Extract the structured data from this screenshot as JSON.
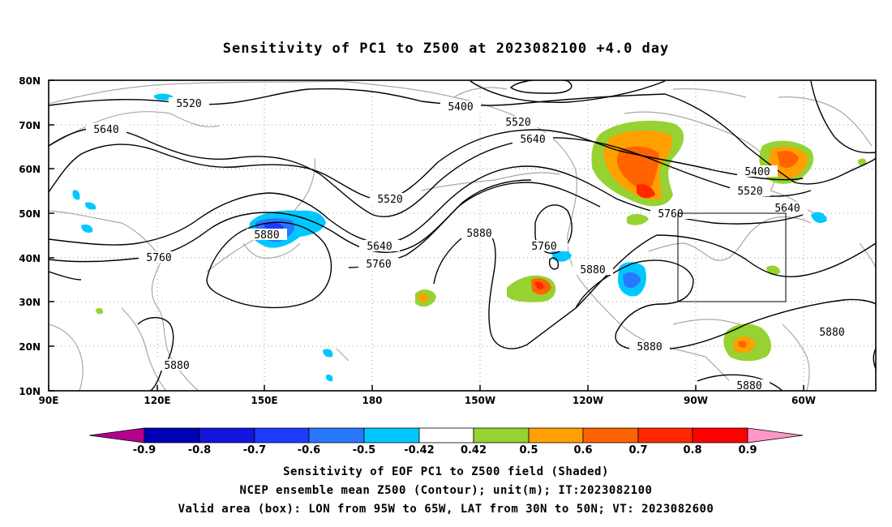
{
  "title": "Sensitivity of PC1 to Z500 at 2023082100 +4.0 day",
  "map": {
    "lon_labels": [
      "90E",
      "120E",
      "150E",
      "180",
      "150W",
      "120W",
      "90W",
      "60W"
    ],
    "lat_labels": [
      "80N",
      "70N",
      "60N",
      "50N",
      "40N",
      "30N",
      "20N",
      "10N"
    ],
    "contour_labels": [
      "5520",
      "5400",
      "5520",
      "5640",
      "5640",
      "5520",
      "5400",
      "5880",
      "5760",
      "5640",
      "5760",
      "5880",
      "5760",
      "5880",
      "5760",
      "5640",
      "5880",
      "5880",
      "5880",
      "5880"
    ]
  },
  "colorbar": {
    "labels": [
      "-0.9",
      "-0.8",
      "-0.7",
      "-0.6",
      "-0.5",
      "-0.42",
      "0.42",
      "0.5",
      "0.6",
      "0.7",
      "0.8",
      "0.9"
    ],
    "colors": [
      "#b4008c",
      "#0000b4",
      "#1414dc",
      "#1e3cff",
      "#2878ff",
      "#00c8ff",
      "#ffffff",
      "#96d232",
      "#ffa000",
      "#ff6400",
      "#ff2800",
      "#ff0000",
      "#ff96c8"
    ]
  },
  "captions": [
    "Sensitivity of EOF PC1 to Z500 field (Shaded)",
    "NCEP ensemble mean Z500 (Contour); unit(m); IT:2023082100",
    "Valid area (box): LON from 95W to 65W, LAT from 30N to 50N; VT: 2023082600"
  ]
}
